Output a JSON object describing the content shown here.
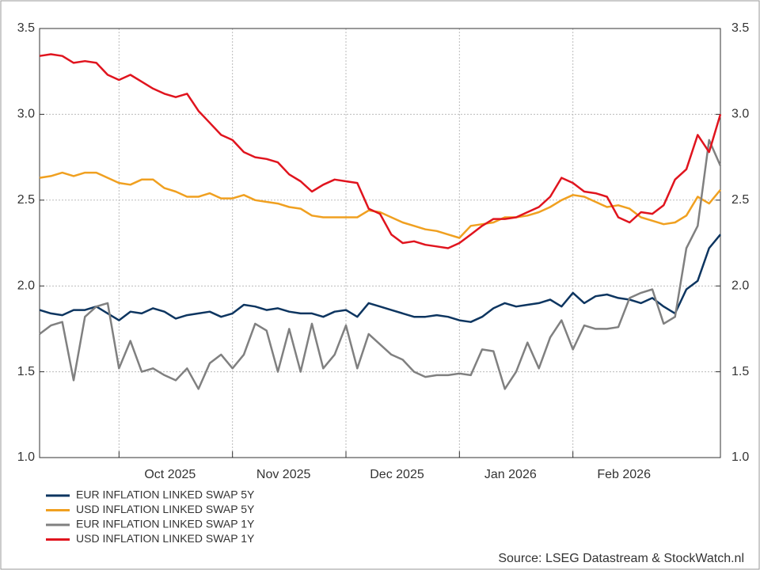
{
  "chart_data": {
    "type": "line",
    "source": "Source: LSEG Datastream & StockWatch.nl",
    "categories": [
      null,
      null,
      null,
      null,
      null,
      null,
      null,
      "Oct 2025",
      null,
      null,
      null,
      null,
      null,
      null,
      null,
      null,
      null,
      "Nov 2025",
      null,
      null,
      null,
      null,
      null,
      null,
      null,
      null,
      null,
      "Dec 2025",
      null,
      null,
      null,
      null,
      null,
      null,
      null,
      null,
      null,
      "Jan 2026",
      null,
      null,
      null,
      null,
      null,
      null,
      null,
      null,
      null,
      "Feb 2026",
      null,
      null,
      null,
      null,
      null,
      null,
      null,
      null,
      null,
      null,
      null,
      null,
      null
    ],
    "ylim": [
      1.0,
      3.5
    ],
    "yticks": [
      {
        "value": 1.0,
        "label": "1.0"
      },
      1.5,
      {
        "value": 2.0,
        "label": "2.0"
      },
      2.5,
      {
        "value": 3.0,
        "label": "3.0"
      },
      3.5
    ],
    "grid": true,
    "legend": "bottom-left",
    "series": [
      {
        "name": "EUR INFLATION LINKED SWAP 5Y",
        "color": "#0d3560",
        "values": [
          1.86,
          1.84,
          1.83,
          1.86,
          1.86,
          1.88,
          1.84,
          1.8,
          1.85,
          1.84,
          1.87,
          1.85,
          1.81,
          1.83,
          1.84,
          1.85,
          1.82,
          1.84,
          1.89,
          1.88,
          1.86,
          1.87,
          1.85,
          1.84,
          1.84,
          1.82,
          1.85,
          1.86,
          1.82,
          1.9,
          1.88,
          1.86,
          1.84,
          1.82,
          1.82,
          1.83,
          1.82,
          1.8,
          1.79,
          1.82,
          1.87,
          1.9,
          1.88,
          1.89,
          1.9,
          1.92,
          1.88,
          1.96,
          1.9,
          1.94,
          1.95,
          1.93,
          1.92,
          1.9,
          1.93,
          1.88,
          1.84,
          1.98,
          2.03,
          2.22,
          2.3
        ]
      },
      {
        "name": "USD INFLATION LINKED SWAP 5Y",
        "color": "#f0a020",
        "values": [
          2.63,
          2.64,
          2.66,
          2.64,
          2.66,
          2.66,
          2.63,
          2.6,
          2.59,
          2.62,
          2.62,
          2.57,
          2.55,
          2.52,
          2.52,
          2.54,
          2.51,
          2.51,
          2.53,
          2.5,
          2.49,
          2.48,
          2.46,
          2.45,
          2.41,
          2.4,
          2.4,
          2.4,
          2.4,
          2.44,
          2.43,
          2.4,
          2.37,
          2.35,
          2.33,
          2.32,
          2.3,
          2.28,
          2.35,
          2.36,
          2.37,
          2.4,
          2.4,
          2.41,
          2.43,
          2.46,
          2.5,
          2.53,
          2.52,
          2.49,
          2.46,
          2.47,
          2.45,
          2.4,
          2.38,
          2.36,
          2.37,
          2.41,
          2.52,
          2.48,
          2.56
        ]
      },
      {
        "name": "EUR INFLATION LINKED SWAP 1Y",
        "color": "#808080",
        "values": [
          1.72,
          1.77,
          1.79,
          1.45,
          1.82,
          1.88,
          1.9,
          1.52,
          1.68,
          1.5,
          1.52,
          1.48,
          1.45,
          1.52,
          1.4,
          1.55,
          1.6,
          1.52,
          1.6,
          1.78,
          1.74,
          1.5,
          1.75,
          1.5,
          1.78,
          1.52,
          1.6,
          1.77,
          1.52,
          1.72,
          1.66,
          1.6,
          1.57,
          1.5,
          1.47,
          1.48,
          1.48,
          1.49,
          1.48,
          1.63,
          1.62,
          1.4,
          1.5,
          1.67,
          1.52,
          1.7,
          1.8,
          1.63,
          1.77,
          1.75,
          1.75,
          1.76,
          1.93,
          1.96,
          1.98,
          1.78,
          1.82,
          2.22,
          2.35,
          2.85,
          2.7
        ]
      },
      {
        "name": "USD INFLATION LINKED SWAP 1Y",
        "color": "#e0141e",
        "values": [
          3.34,
          3.35,
          3.34,
          3.3,
          3.31,
          3.3,
          3.23,
          3.2,
          3.23,
          3.19,
          3.15,
          3.12,
          3.1,
          3.12,
          3.02,
          2.95,
          2.88,
          2.85,
          2.78,
          2.75,
          2.74,
          2.72,
          2.65,
          2.61,
          2.55,
          2.59,
          2.62,
          2.61,
          2.6,
          2.45,
          2.42,
          2.3,
          2.25,
          2.26,
          2.24,
          2.23,
          2.22,
          2.25,
          2.3,
          2.35,
          2.39,
          2.39,
          2.4,
          2.43,
          2.46,
          2.52,
          2.63,
          2.6,
          2.55,
          2.54,
          2.52,
          2.4,
          2.37,
          2.43,
          2.42,
          2.47,
          2.62,
          2.68,
          2.88,
          2.78,
          3.0
        ]
      }
    ]
  }
}
